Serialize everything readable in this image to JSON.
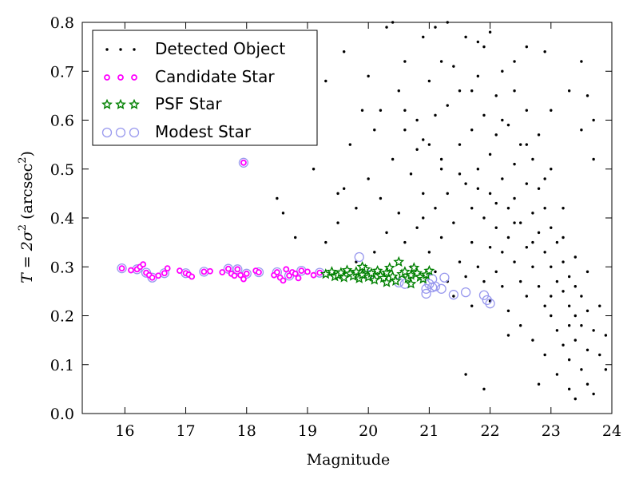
{
  "chart_data": {
    "type": "scatter",
    "xlabel": "Magnitude",
    "ylabel_prefix": "T = 2σ",
    "ylabel_sup1": "2",
    "ylabel_mid": " (arcsec",
    "ylabel_sup2": "2",
    "ylabel_suffix": ")",
    "xlim": [
      15.3,
      24
    ],
    "ylim": [
      0,
      0.8
    ],
    "xticks": [
      "16",
      "17",
      "18",
      "19",
      "20",
      "21",
      "22",
      "23",
      "24"
    ],
    "yticks": [
      "0.0",
      "0.1",
      "0.2",
      "0.3",
      "0.4",
      "0.5",
      "0.6",
      "0.7",
      "0.8"
    ],
    "grid": false,
    "legend_position": "top-left",
    "colors": {
      "detected": "#000000",
      "candidate": "#ff00ff",
      "psf": "#008000",
      "modest": "#9999ee"
    },
    "series": [
      {
        "name": "Detected Object",
        "marker": "dot",
        "points": [
          [
            18.5,
            0.44
          ],
          [
            18.6,
            0.41
          ],
          [
            18.8,
            0.36
          ],
          [
            19.1,
            0.5
          ],
          [
            19.3,
            0.35
          ],
          [
            19.5,
            0.39
          ],
          [
            19.6,
            0.46
          ],
          [
            19.7,
            0.55
          ],
          [
            19.8,
            0.42
          ],
          [
            19.9,
            0.62
          ],
          [
            20.0,
            0.48
          ],
          [
            20.1,
            0.58
          ],
          [
            20.1,
            0.33
          ],
          [
            20.2,
            0.44
          ],
          [
            20.3,
            0.79
          ],
          [
            20.3,
            0.37
          ],
          [
            20.4,
            0.52
          ],
          [
            20.5,
            0.66
          ],
          [
            20.5,
            0.41
          ],
          [
            20.6,
            0.35
          ],
          [
            20.6,
            0.72
          ],
          [
            20.7,
            0.49
          ],
          [
            20.7,
            0.3
          ],
          [
            20.8,
            0.6
          ],
          [
            20.8,
            0.38
          ],
          [
            20.9,
            0.77
          ],
          [
            20.9,
            0.45
          ],
          [
            21.0,
            0.33
          ],
          [
            21.0,
            0.55
          ],
          [
            21.0,
            0.68
          ],
          [
            21.1,
            0.42
          ],
          [
            21.1,
            0.29
          ],
          [
            21.1,
            0.79
          ],
          [
            21.2,
            0.5
          ],
          [
            21.2,
            0.36
          ],
          [
            21.3,
            0.63
          ],
          [
            21.3,
            0.27
          ],
          [
            21.3,
            0.45
          ],
          [
            21.4,
            0.71
          ],
          [
            21.4,
            0.39
          ],
          [
            21.4,
            0.24
          ],
          [
            21.5,
            0.55
          ],
          [
            21.5,
            0.31
          ],
          [
            21.5,
            0.66
          ],
          [
            21.6,
            0.47
          ],
          [
            21.6,
            0.28
          ],
          [
            21.6,
            0.77
          ],
          [
            21.7,
            0.58
          ],
          [
            21.7,
            0.35
          ],
          [
            21.7,
            0.42
          ],
          [
            21.7,
            0.22
          ],
          [
            21.8,
            0.69
          ],
          [
            21.8,
            0.5
          ],
          [
            21.8,
            0.3
          ],
          [
            21.9,
            0.61
          ],
          [
            21.9,
            0.4
          ],
          [
            21.9,
            0.27
          ],
          [
            21.9,
            0.75
          ],
          [
            22.0,
            0.53
          ],
          [
            22.0,
            0.34
          ],
          [
            22.0,
            0.45
          ],
          [
            22.0,
            0.23
          ],
          [
            22.1,
            0.65
          ],
          [
            22.1,
            0.38
          ],
          [
            22.1,
            0.29
          ],
          [
            22.1,
            0.57
          ],
          [
            22.2,
            0.48
          ],
          [
            22.2,
            0.33
          ],
          [
            22.2,
            0.7
          ],
          [
            22.2,
            0.26
          ],
          [
            22.3,
            0.42
          ],
          [
            22.3,
            0.59
          ],
          [
            22.3,
            0.36
          ],
          [
            22.3,
            0.21
          ],
          [
            22.4,
            0.51
          ],
          [
            22.4,
            0.31
          ],
          [
            22.4,
            0.44
          ],
          [
            22.4,
            0.66
          ],
          [
            22.5,
            0.39
          ],
          [
            22.5,
            0.27
          ],
          [
            22.5,
            0.55
          ],
          [
            22.5,
            0.18
          ],
          [
            22.6,
            0.47
          ],
          [
            22.6,
            0.34
          ],
          [
            22.6,
            0.62
          ],
          [
            22.6,
            0.24
          ],
          [
            22.7,
            0.41
          ],
          [
            22.7,
            0.3
          ],
          [
            22.7,
            0.52
          ],
          [
            22.7,
            0.15
          ],
          [
            22.8,
            0.37
          ],
          [
            22.8,
            0.26
          ],
          [
            22.8,
            0.46
          ],
          [
            22.8,
            0.57
          ],
          [
            22.9,
            0.33
          ],
          [
            22.9,
            0.22
          ],
          [
            22.9,
            0.42
          ],
          [
            22.9,
            0.12
          ],
          [
            23.0,
            0.3
          ],
          [
            23.0,
            0.38
          ],
          [
            23.0,
            0.2
          ],
          [
            23.0,
            0.5
          ],
          [
            23.1,
            0.27
          ],
          [
            23.1,
            0.35
          ],
          [
            23.1,
            0.17
          ],
          [
            23.1,
            0.08
          ],
          [
            23.2,
            0.25
          ],
          [
            23.2,
            0.31
          ],
          [
            23.2,
            0.14
          ],
          [
            23.2,
            0.42
          ],
          [
            23.3,
            0.22
          ],
          [
            23.3,
            0.28
          ],
          [
            23.3,
            0.11
          ],
          [
            23.3,
            0.05
          ],
          [
            23.4,
            0.2
          ],
          [
            23.4,
            0.26
          ],
          [
            23.4,
            0.15
          ],
          [
            23.5,
            0.18
          ],
          [
            23.5,
            0.24
          ],
          [
            23.5,
            0.09
          ],
          [
            23.6,
            0.65
          ],
          [
            23.6,
            0.21
          ],
          [
            23.6,
            0.13
          ],
          [
            23.7,
            0.6
          ],
          [
            23.7,
            0.17
          ],
          [
            23.7,
            0.04
          ],
          [
            23.8,
            0.12
          ],
          [
            23.9,
            0.16
          ],
          [
            21.6,
            0.08
          ],
          [
            21.9,
            0.05
          ],
          [
            22.3,
            0.16
          ],
          [
            22.8,
            0.06
          ],
          [
            23.4,
            0.03
          ],
          [
            23.7,
            0.52
          ],
          [
            23.5,
            0.72
          ],
          [
            22.6,
            0.75
          ],
          [
            21.2,
            0.72
          ],
          [
            20.4,
            0.8
          ],
          [
            19.3,
            0.68
          ],
          [
            19.6,
            0.74
          ],
          [
            20.0,
            0.69
          ],
          [
            20.6,
            0.58
          ],
          [
            21.3,
            0.8
          ],
          [
            22.0,
            0.78
          ],
          [
            22.9,
            0.74
          ],
          [
            23.3,
            0.66
          ],
          [
            23.5,
            0.58
          ],
          [
            23.0,
            0.62
          ],
          [
            22.4,
            0.72
          ],
          [
            21.8,
            0.76
          ],
          [
            20.8,
            0.54
          ],
          [
            20.2,
            0.62
          ],
          [
            19.8,
            0.31
          ],
          [
            19.5,
            0.45
          ],
          [
            20.9,
            0.4
          ],
          [
            21.1,
            0.61
          ],
          [
            21.7,
            0.66
          ],
          [
            22.2,
            0.6
          ],
          [
            22.6,
            0.55
          ],
          [
            22.9,
            0.48
          ],
          [
            23.2,
            0.36
          ],
          [
            23.4,
            0.32
          ],
          [
            23.6,
            0.29
          ],
          [
            23.8,
            0.22
          ],
          [
            23.9,
            0.09
          ],
          [
            23.6,
            0.06
          ],
          [
            23.3,
            0.18
          ],
          [
            23.0,
            0.24
          ],
          [
            22.7,
            0.35
          ],
          [
            22.4,
            0.39
          ],
          [
            22.1,
            0.43
          ],
          [
            21.8,
            0.46
          ],
          [
            21.5,
            0.49
          ],
          [
            21.2,
            0.52
          ],
          [
            20.9,
            0.56
          ],
          [
            20.6,
            0.62
          ]
        ]
      },
      {
        "name": "Candidate Star",
        "marker": "circle",
        "points": [
          [
            15.95,
            0.297
          ],
          [
            16.1,
            0.293
          ],
          [
            16.2,
            0.295
          ],
          [
            16.25,
            0.3
          ],
          [
            16.3,
            0.305
          ],
          [
            16.35,
            0.288
          ],
          [
            16.4,
            0.283
          ],
          [
            16.45,
            0.278
          ],
          [
            16.55,
            0.282
          ],
          [
            16.65,
            0.287
          ],
          [
            16.7,
            0.297
          ],
          [
            16.9,
            0.292
          ],
          [
            17.0,
            0.287
          ],
          [
            17.05,
            0.284
          ],
          [
            17.1,
            0.28
          ],
          [
            17.3,
            0.29
          ],
          [
            17.4,
            0.291
          ],
          [
            17.6,
            0.289
          ],
          [
            17.7,
            0.296
          ],
          [
            17.75,
            0.286
          ],
          [
            17.8,
            0.282
          ],
          [
            17.85,
            0.295
          ],
          [
            17.9,
            0.283
          ],
          [
            17.95,
            0.275
          ],
          [
            18.0,
            0.286
          ],
          [
            18.15,
            0.292
          ],
          [
            18.2,
            0.289
          ],
          [
            18.45,
            0.283
          ],
          [
            18.5,
            0.289
          ],
          [
            18.55,
            0.278
          ],
          [
            18.6,
            0.272
          ],
          [
            18.65,
            0.295
          ],
          [
            18.7,
            0.282
          ],
          [
            18.75,
            0.289
          ],
          [
            18.8,
            0.286
          ],
          [
            18.85,
            0.277
          ],
          [
            18.9,
            0.292
          ],
          [
            19.0,
            0.29
          ],
          [
            19.1,
            0.283
          ],
          [
            19.2,
            0.288
          ],
          [
            17.95,
            0.513
          ]
        ]
      },
      {
        "name": "PSF Star",
        "marker": "star",
        "points": [
          [
            19.3,
            0.285
          ],
          [
            19.4,
            0.29
          ],
          [
            19.45,
            0.28
          ],
          [
            19.5,
            0.283
          ],
          [
            19.55,
            0.288
          ],
          [
            19.6,
            0.278
          ],
          [
            19.65,
            0.293
          ],
          [
            19.7,
            0.286
          ],
          [
            19.75,
            0.281
          ],
          [
            19.8,
            0.29
          ],
          [
            19.85,
            0.276
          ],
          [
            19.9,
            0.284
          ],
          [
            19.95,
            0.295
          ],
          [
            20.0,
            0.279
          ],
          [
            20.05,
            0.287
          ],
          [
            20.1,
            0.273
          ],
          [
            20.15,
            0.292
          ],
          [
            20.2,
            0.282
          ],
          [
            20.25,
            0.277
          ],
          [
            20.3,
            0.288
          ],
          [
            20.35,
            0.298
          ],
          [
            20.4,
            0.28
          ],
          [
            20.45,
            0.271
          ],
          [
            20.5,
            0.31
          ],
          [
            20.55,
            0.285
          ],
          [
            20.6,
            0.29
          ],
          [
            20.65,
            0.276
          ],
          [
            20.7,
            0.283
          ],
          [
            20.75,
            0.298
          ],
          [
            20.8,
            0.287
          ],
          [
            20.85,
            0.279
          ],
          [
            20.9,
            0.275
          ],
          [
            20.95,
            0.284
          ],
          [
            21.0,
            0.292
          ],
          [
            19.9,
            0.3
          ],
          [
            20.3,
            0.268
          ],
          [
            20.7,
            0.265
          ]
        ]
      },
      {
        "name": "Modest Star",
        "marker": "ring",
        "points": [
          [
            15.95,
            0.297
          ],
          [
            16.2,
            0.295
          ],
          [
            16.35,
            0.288
          ],
          [
            16.45,
            0.278
          ],
          [
            16.65,
            0.287
          ],
          [
            17.0,
            0.287
          ],
          [
            17.3,
            0.29
          ],
          [
            17.7,
            0.296
          ],
          [
            17.85,
            0.295
          ],
          [
            18.0,
            0.286
          ],
          [
            18.2,
            0.289
          ],
          [
            18.5,
            0.289
          ],
          [
            18.7,
            0.282
          ],
          [
            18.9,
            0.292
          ],
          [
            19.2,
            0.288
          ],
          [
            17.95,
            0.513
          ],
          [
            19.85,
            0.32
          ],
          [
            20.6,
            0.265
          ],
          [
            20.95,
            0.255
          ],
          [
            21.0,
            0.265
          ],
          [
            21.05,
            0.275
          ],
          [
            20.95,
            0.245
          ],
          [
            21.1,
            0.26
          ],
          [
            21.2,
            0.255
          ],
          [
            21.25,
            0.278
          ],
          [
            21.4,
            0.243
          ],
          [
            21.6,
            0.248
          ],
          [
            21.9,
            0.242
          ],
          [
            21.95,
            0.232
          ],
          [
            22.0,
            0.225
          ],
          [
            21.05,
            0.258
          ],
          [
            20.5,
            0.268
          ],
          [
            20.0,
            0.284
          ]
        ]
      }
    ]
  }
}
